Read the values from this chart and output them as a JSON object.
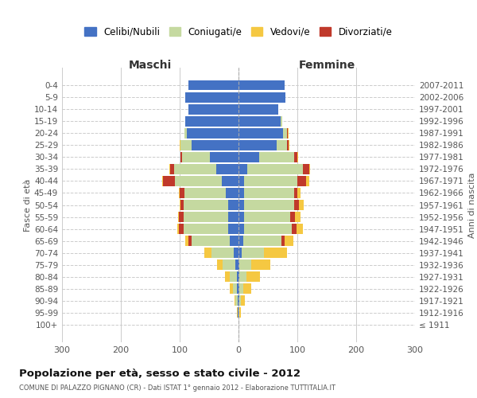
{
  "age_groups": [
    "0-4",
    "5-9",
    "10-14",
    "15-19",
    "20-24",
    "25-29",
    "30-34",
    "35-39",
    "40-44",
    "45-49",
    "50-54",
    "55-59",
    "60-64",
    "65-69",
    "70-74",
    "75-79",
    "80-84",
    "85-89",
    "90-94",
    "95-99",
    "100+"
  ],
  "birth_years": [
    "2007-2011",
    "2002-2006",
    "1997-2001",
    "1992-1996",
    "1987-1991",
    "1982-1986",
    "1977-1981",
    "1972-1976",
    "1967-1971",
    "1962-1966",
    "1957-1961",
    "1952-1956",
    "1947-1951",
    "1942-1946",
    "1937-1941",
    "1932-1936",
    "1927-1931",
    "1922-1926",
    "1917-1921",
    "1912-1916",
    "≤ 1911"
  ],
  "maschi": {
    "celibi": [
      85,
      90,
      85,
      90,
      88,
      80,
      48,
      38,
      28,
      22,
      18,
      18,
      18,
      15,
      8,
      5,
      3,
      3,
      2,
      1,
      0
    ],
    "coniugati": [
      0,
      0,
      0,
      0,
      4,
      18,
      48,
      72,
      80,
      70,
      75,
      75,
      75,
      65,
      38,
      22,
      12,
      7,
      3,
      1,
      0
    ],
    "vedovi": [
      0,
      0,
      0,
      0,
      0,
      2,
      1,
      2,
      2,
      2,
      2,
      2,
      3,
      5,
      12,
      10,
      8,
      5,
      2,
      1,
      0
    ],
    "divorziati": [
      0,
      0,
      0,
      0,
      0,
      0,
      2,
      6,
      20,
      8,
      5,
      8,
      8,
      5,
      0,
      0,
      0,
      0,
      0,
      0,
      0
    ]
  },
  "femmine": {
    "nubili": [
      78,
      80,
      68,
      72,
      75,
      65,
      35,
      15,
      10,
      10,
      10,
      10,
      10,
      8,
      5,
      2,
      2,
      1,
      1,
      0,
      0
    ],
    "coniugate": [
      0,
      0,
      0,
      2,
      8,
      18,
      60,
      95,
      90,
      85,
      85,
      78,
      80,
      65,
      38,
      20,
      12,
      7,
      3,
      1,
      0
    ],
    "vedove": [
      0,
      0,
      0,
      0,
      1,
      2,
      2,
      2,
      5,
      5,
      8,
      10,
      12,
      15,
      40,
      32,
      22,
      14,
      7,
      3,
      0
    ],
    "divorziate": [
      0,
      0,
      0,
      0,
      1,
      2,
      5,
      10,
      15,
      5,
      8,
      8,
      8,
      5,
      0,
      0,
      0,
      0,
      0,
      0,
      0
    ]
  },
  "colors": {
    "celibi_nubili": "#4472C4",
    "coniugati": "#C5D9A0",
    "vedovi": "#F5C842",
    "divorziati": "#C0392B"
  },
  "title": "Popolazione per età, sesso e stato civile - 2012",
  "subtitle": "COMUNE DI PALAZZO PIGNANO (CR) - Dati ISTAT 1° gennaio 2012 - Elaborazione TUTTITALIA.IT",
  "xlabel_left": "Maschi",
  "xlabel_right": "Femmine",
  "ylabel_left": "Fasce di età",
  "ylabel_right": "Anni di nascita",
  "xlim": 300,
  "legend_labels": [
    "Celibi/Nubili",
    "Coniugati/e",
    "Vedovi/e",
    "Divorziati/e"
  ],
  "background_color": "#ffffff",
  "grid_color": "#cccccc"
}
